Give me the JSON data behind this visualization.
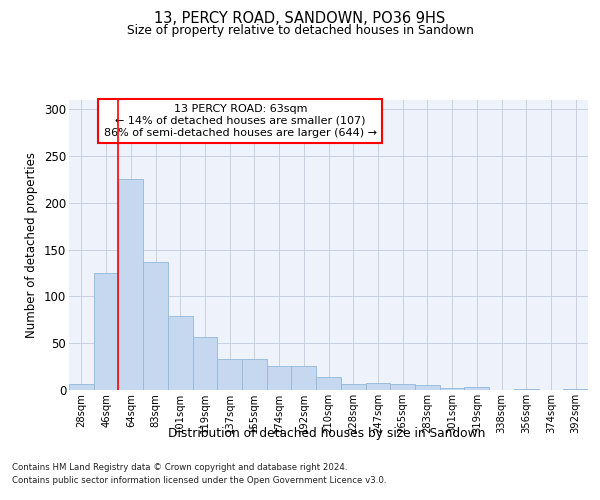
{
  "title": "13, PERCY ROAD, SANDOWN, PO36 9HS",
  "subtitle": "Size of property relative to detached houses in Sandown",
  "xlabel": "Distribution of detached houses by size in Sandown",
  "ylabel": "Number of detached properties",
  "footnote1": "Contains HM Land Registry data © Crown copyright and database right 2024.",
  "footnote2": "Contains public sector information licensed under the Open Government Licence v3.0.",
  "bar_labels": [
    "28sqm",
    "46sqm",
    "64sqm",
    "83sqm",
    "101sqm",
    "119sqm",
    "137sqm",
    "155sqm",
    "174sqm",
    "192sqm",
    "210sqm",
    "228sqm",
    "247sqm",
    "265sqm",
    "283sqm",
    "301sqm",
    "319sqm",
    "338sqm",
    "356sqm",
    "374sqm",
    "392sqm"
  ],
  "bar_values": [
    6,
    125,
    226,
    137,
    79,
    57,
    33,
    33,
    26,
    26,
    14,
    6,
    8,
    6,
    5,
    2,
    3,
    0,
    1,
    0,
    1
  ],
  "bar_color": "#c5d8f0",
  "bar_edge_color": "#90b8d8",
  "background_color": "#eef2fa",
  "grid_color": "#c8d0e0",
  "red_line_x": 1.5,
  "annotation_text": "13 PERCY ROAD: 63sqm\n← 14% of detached houses are smaller (107)\n86% of semi-detached houses are larger (644) →",
  "annotation_box_color": "white",
  "annotation_box_edge": "red",
  "ylim": [
    0,
    310
  ],
  "yticks": [
    0,
    50,
    100,
    150,
    200,
    250,
    300
  ]
}
